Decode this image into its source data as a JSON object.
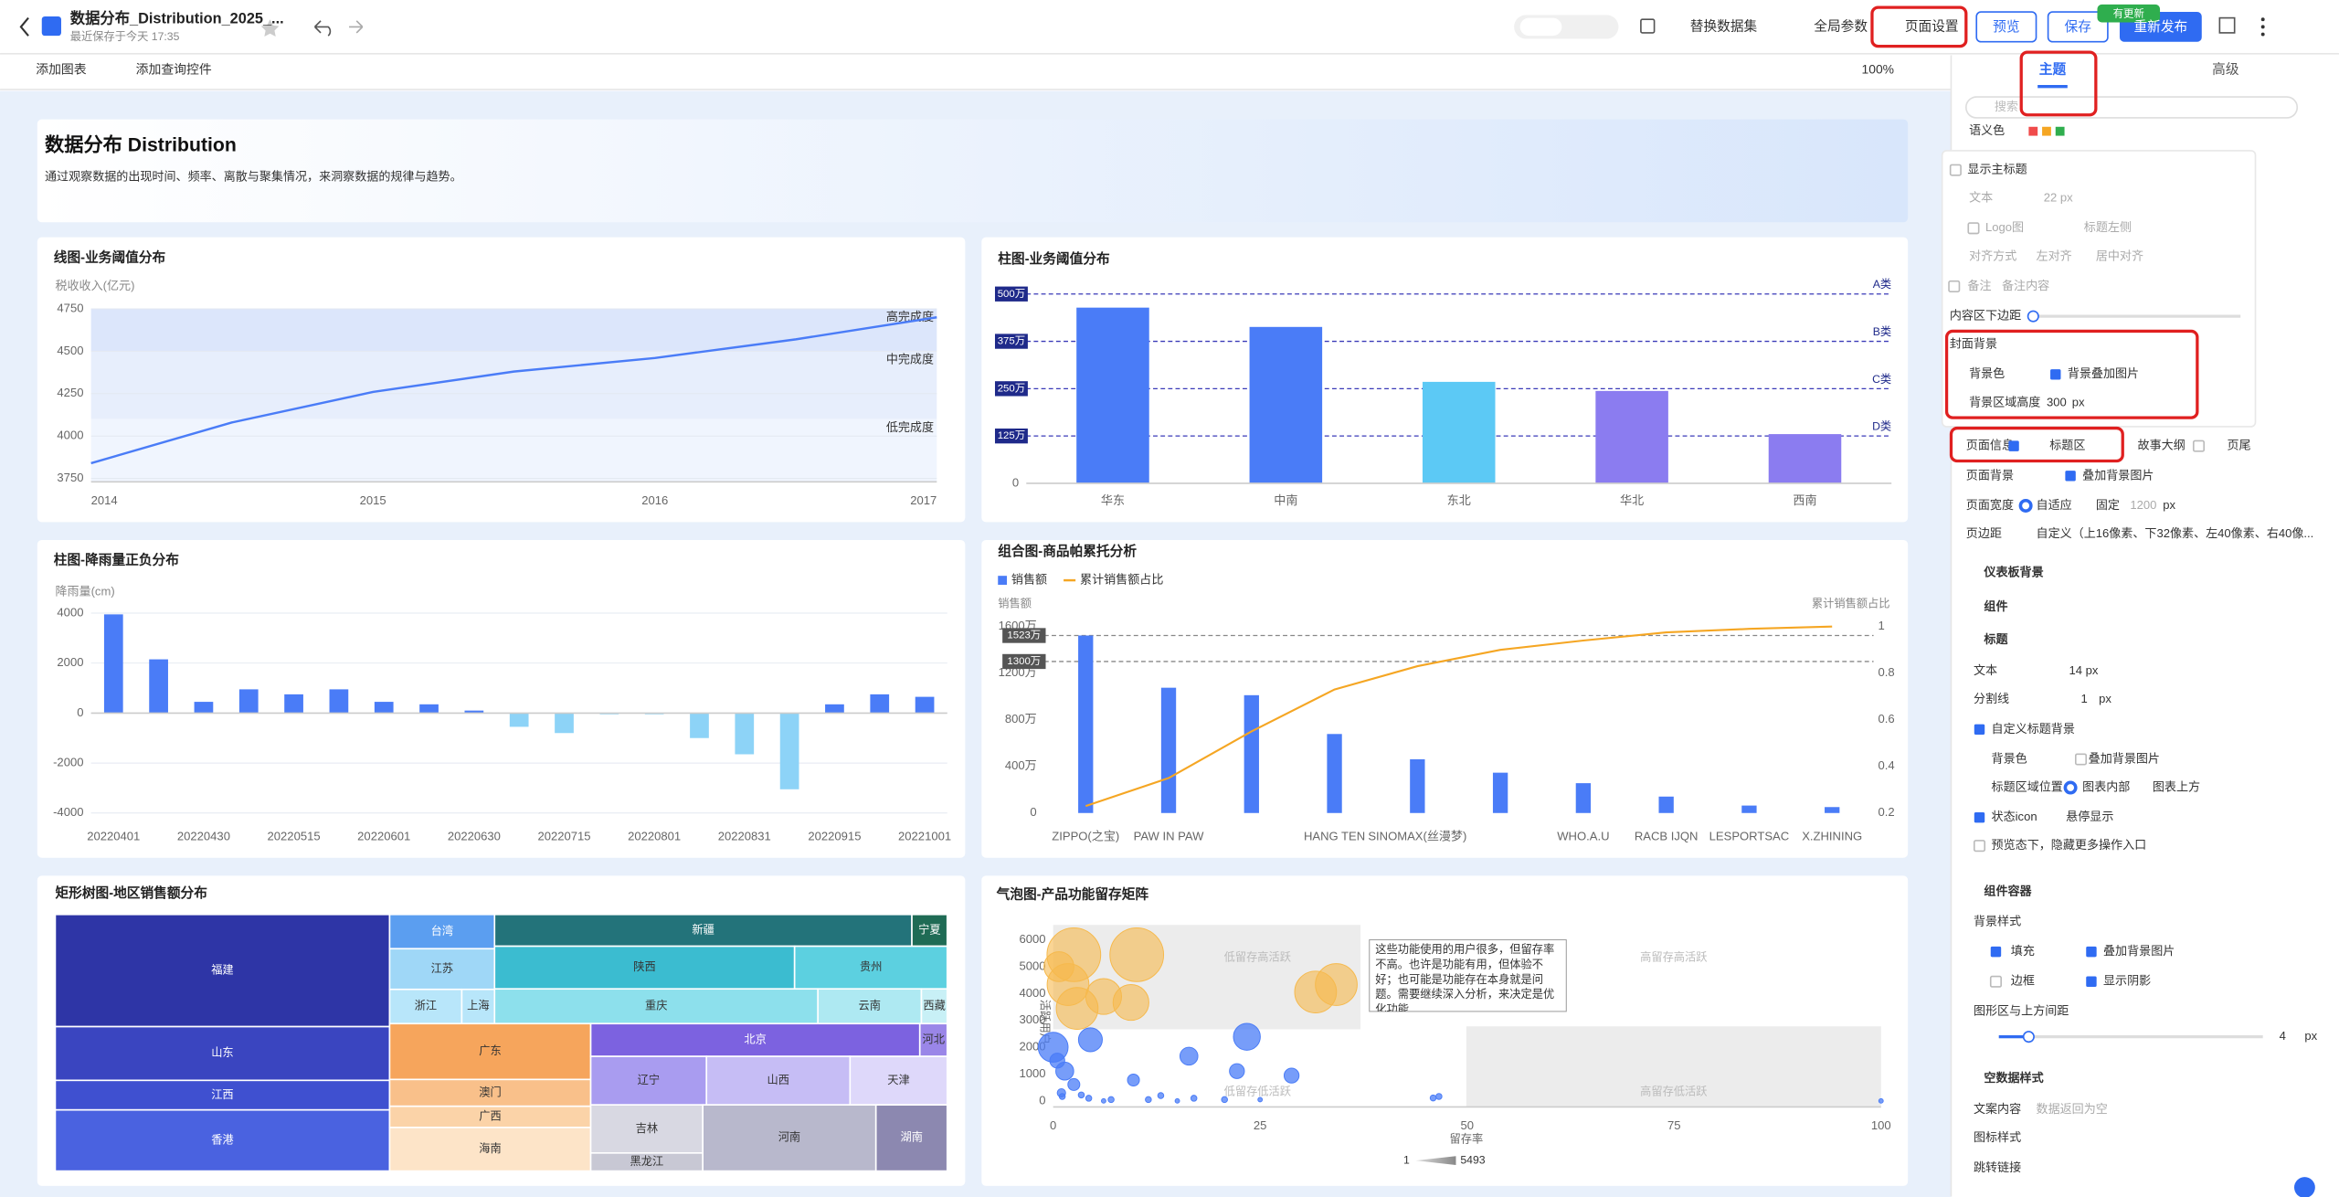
{
  "toolbar": {
    "title": "数据分布_Distribution_2025_...",
    "saved": "最近保存于今天 17:35",
    "actions": [
      "替换数据集",
      "全局参数",
      "页面设置"
    ],
    "preview": "预览",
    "save": "保存",
    "publish": "重新发布",
    "badge": "有更新"
  },
  "subbar": {
    "add_chart": "添加图表",
    "add_query": "添加查询控件",
    "zoom": "100%"
  },
  "header": {
    "title": "数据分布 Distribution",
    "description": "通过观察数据的出现时间、频率、离散与聚集情况，来洞察数据的规律与趋势。"
  },
  "chart_data": [
    {
      "type": "line",
      "title": "线图-业务阈值分布",
      "y_label": "税收收入(亿元)",
      "x": [
        2014,
        2014.5,
        2015,
        2015.5,
        2016,
        2016.5,
        2017
      ],
      "values": [
        3840,
        4080,
        4260,
        4380,
        4460,
        4570,
        4700
      ],
      "color": "#4a7cf7",
      "xlim": [
        2014,
        2017
      ],
      "xticks": [
        2014,
        2015,
        2016,
        2017
      ],
      "ylim": [
        3730,
        4750
      ],
      "yticks": [
        3750,
        4000,
        4250,
        4500,
        4750
      ],
      "grid": true,
      "bands": [
        {
          "name": "高完成度",
          "from": 4500,
          "to": 4750,
          "color": "#dce6fb"
        },
        {
          "name": "中完成度",
          "from": 4100,
          "to": 4500,
          "color": "#e7eefc"
        },
        {
          "name": "低完成度",
          "from": 3730,
          "to": 4100,
          "color": "#f0f5fe"
        }
      ]
    },
    {
      "type": "bar",
      "title": "柱图-业务阈值分布",
      "categories": [
        "华东",
        "中南",
        "东北",
        "华北",
        "西南"
      ],
      "values": [
        4640000,
        4130000,
        2680000,
        2440000,
        1300000
      ],
      "colors": [
        "#4a7cf7",
        "#4a7cf7",
        "#5cc9f5",
        "#8b7cf0",
        "#8b7cf0"
      ],
      "ylim": [
        0,
        5200000
      ],
      "yticks": [
        0
      ],
      "grid": false,
      "reference_lines": [
        {
          "name": "A类",
          "value": 5000000,
          "label": "500万"
        },
        {
          "name": "B类",
          "value": 3750000,
          "label": "375万"
        },
        {
          "name": "C类",
          "value": 2500000,
          "label": "250万"
        },
        {
          "name": "D类",
          "value": 1250000,
          "label": "125万"
        }
      ]
    },
    {
      "type": "bar",
      "title": "柱图-降雨量正负分布",
      "y_label": "降雨量(cm)",
      "categories": [
        "20220401",
        null,
        "20220430",
        null,
        "20220515",
        null,
        "20220601",
        null,
        "20220630",
        null,
        "20220715",
        null,
        "20220801",
        null,
        "20220831",
        null,
        "20220915",
        null,
        "20221001"
      ],
      "values": [
        3950,
        2150,
        450,
        950,
        750,
        950,
        450,
        350,
        100,
        -550,
        -800,
        -50,
        -50,
        -1000,
        -1650,
        -3050,
        350,
        750,
        650
      ],
      "positive_color": "#4a7cf7",
      "negative_color": "#8dd3f7",
      "ylim": [
        -4000,
        4000
      ],
      "yticks": [
        4000,
        2000,
        0,
        -2000,
        -4000
      ],
      "grid": true
    },
    {
      "type": "combo",
      "title": "组合图-商品帕累托分析",
      "y_label": "销售额",
      "y2_label": "累计销售额占比",
      "categories": [
        "ZIPPO(之宝)",
        "PAW IN PAW",
        null,
        "HANG TEN",
        "SINOMAX(丝漫梦)",
        null,
        "WHO.A.U",
        "RACB IJQN",
        "LESPORTSAC",
        "X.ZHINING"
      ],
      "series": [
        {
          "name": "销售额",
          "type": "bar",
          "color": "#4a7cf7",
          "values": [
            15230000,
            10750000,
            10110000,
            6780000,
            4610000,
            3460000,
            2560000,
            1410000,
            640000,
            510000
          ]
        },
        {
          "name": "累计销售额占比",
          "type": "line",
          "axis": "y2",
          "color": "#f5a623",
          "values": [
            0.23,
            0.35,
            0.55,
            0.73,
            0.83,
            0.9,
            0.94,
            0.975,
            0.99,
            1
          ]
        }
      ],
      "ylim": [
        0,
        16000000
      ],
      "yticks": [
        0,
        {
          "value": 4000000,
          "label": "400万"
        },
        {
          "value": 8000000,
          "label": "800万"
        },
        {
          "value": 12000000,
          "label": "1200万"
        },
        {
          "value": 16000000,
          "label": "1600万"
        }
      ],
      "y2lim": [
        0.2,
        1
      ],
      "y2ticks": [
        0.2,
        0.4,
        0.6,
        0.8,
        1
      ],
      "reference_lines": [
        {
          "value": 15230000,
          "label": "1523万"
        },
        {
          "value": 13000000,
          "label": "1300万"
        }
      ]
    },
    {
      "type": "treemap",
      "title": "矩形树图-地区销售额分布",
      "items": [
        {
          "name": "福建",
          "value": 167,
          "color": "#2e35a6"
        },
        {
          "name": "山东",
          "value": 80,
          "color": "#3a45c0"
        },
        {
          "name": "江西",
          "value": 44,
          "color": "#3f50d0"
        },
        {
          "name": "香港",
          "value": 91,
          "color": "#4a62e0"
        },
        {
          "name": "台湾",
          "value": 16,
          "color": "#5b9ef0"
        },
        {
          "name": "江苏",
          "value": 19,
          "color": "#9fd7f7"
        },
        {
          "name": "浙江",
          "value": 11,
          "color": "#b8e6fa"
        },
        {
          "name": "上海",
          "value": 5,
          "color": "#b8e6fa"
        },
        {
          "name": "新疆",
          "value": 59,
          "color": "#23737a"
        },
        {
          "name": "宁夏",
          "value": 5,
          "color": "#1f6b55"
        },
        {
          "name": "陕西",
          "value": 57,
          "color": "#3bbcd0"
        },
        {
          "name": "贵州",
          "value": 29,
          "color": "#5cd0e0"
        },
        {
          "name": "重庆",
          "value": 50,
          "color": "#8de0ec"
        },
        {
          "name": "云南",
          "value": 16,
          "color": "#aee9f2"
        },
        {
          "name": "西藏",
          "value": 4,
          "color": "#c8f0f6"
        },
        {
          "name": "广东",
          "value": 50,
          "color": "#f6a55c"
        },
        {
          "name": "澳门",
          "value": 24,
          "color": "#f9c08a"
        },
        {
          "name": "广西",
          "value": 19,
          "color": "#fbd3a8"
        },
        {
          "name": "海南",
          "value": 39,
          "color": "#fde4c8"
        },
        {
          "name": "北京",
          "value": 48,
          "color": "#7c62e0"
        },
        {
          "name": "河北",
          "value": 4,
          "color": "#9a86e8"
        },
        {
          "name": "辽宁",
          "value": 25,
          "color": "#a99cf0"
        },
        {
          "name": "山西",
          "value": 31,
          "color": "#c6bdf5"
        },
        {
          "name": "天津",
          "value": 21,
          "color": "#ded8fa"
        },
        {
          "name": "吉林",
          "value": 24,
          "color": "#d8d8e2"
        },
        {
          "name": "黑龙江",
          "value": 9,
          "color": "#c8c8d4"
        },
        {
          "name": "河南",
          "value": 51,
          "color": "#b8b8cc"
        },
        {
          "name": "湖南",
          "value": 21,
          "color": "#8c88b0"
        }
      ]
    },
    {
      "type": "bubble",
      "title": "气泡图-产品功能留存矩阵",
      "x_label": "留存率",
      "y_label": "活跃用户",
      "xlim": [
        0,
        100
      ],
      "xticks": [
        0,
        25,
        50,
        75,
        100
      ],
      "ylim": [
        0,
        6500
      ],
      "yticks": [
        0,
        1000,
        2000,
        3000,
        4000,
        5000,
        6000
      ],
      "size_range": [
        1,
        5493
      ],
      "quadrant_labels": [
        "低留存高活跃",
        "高留存高活跃",
        "低留存低活跃",
        "高留存低活跃"
      ],
      "annotation": "这些功能使用的用户很多，但留存率不高。也许是功能有用，但体验不好；也可能是功能存在本身就是问题。需要继续深入分析，来决定是优化功能...",
      "series": [
        {
          "color": "#f6b94c",
          "x": [
            2.5,
            10.1,
            1.8,
            6.1,
            2.9,
            9.4,
            31.7,
            34.2,
            0.7
          ],
          "values": [
            5444,
            5444,
            4333,
            3889,
            3444,
            3667,
            4056,
            4333,
            5000
          ],
          "sizes": [
            4930,
            4930,
            2982,
            2191,
            2982,
            2191,
            2982,
            2982,
            1522
          ]
        },
        {
          "color": "#4a7cf7",
          "x": [
            0,
            23.4,
            4.5,
            16.4,
            22.2,
            28.8,
            1.4,
            2.5,
            9.7,
            0.5,
            1.1,
            4.3,
            7,
            11.5,
            17,
            20.7,
            45.9,
            46.6,
            1,
            3.4,
            6.1,
            15,
            100,
            13,
            25
          ],
          "values": [
            2000,
            2389,
            2278,
            1667,
            1111,
            944,
            1111,
            611,
            778,
            1500,
            167,
            100,
            50,
            50,
            100,
            50,
            111,
            167,
            300,
            222,
            0,
            0,
            0,
            200,
            50
          ],
          "sizes": [
            1522,
            1233,
            974,
            548,
            380,
            380,
            548,
            243,
            243,
            380,
            61,
            61,
            61,
            61,
            61,
            61,
            61,
            61,
            120,
            61,
            34,
            34,
            34,
            61,
            34
          ]
        }
      ]
    }
  ],
  "panel": {
    "tabs": [
      "主题",
      "高级"
    ],
    "search": "搜索",
    "labels": [
      "语义色",
      "显示主标题",
      "文本",
      "22 px",
      "Logo图",
      "标题左侧",
      "对齐方式",
      "左对齐",
      "居中对齐",
      "备注",
      "备注内容",
      "内容区下边距",
      "封面背景",
      "背景色",
      "背景叠加图片",
      "背景区域高度",
      "300",
      "px",
      "页面信息",
      "标题区",
      "故事大纲",
      "页尾",
      "页面背景",
      "叠加背景图片",
      "页面宽度",
      "自适应",
      "固定",
      "1200",
      "px",
      "页边距",
      "自定义（上16像素、下32像素、左40像素、右40像...",
      "仪表板背景",
      "组件",
      "标题",
      "文本",
      "14 px",
      "分割线",
      "1",
      "px",
      "自定义标题背景",
      "背景色",
      "叠加背景图片",
      "标题区域位置",
      "图表内部",
      "图表上方",
      "状态icon",
      "悬停显示",
      "预览态下，隐藏更多操作入口",
      "组件容器",
      "背景样式",
      "填充",
      "叠加背景图片",
      "边框",
      "显示阴影",
      "图形区与上方间距",
      "4",
      "px",
      "空数据样式",
      "文案内容",
      "数据返回为空",
      "图标样式",
      "跳转链接"
    ]
  }
}
